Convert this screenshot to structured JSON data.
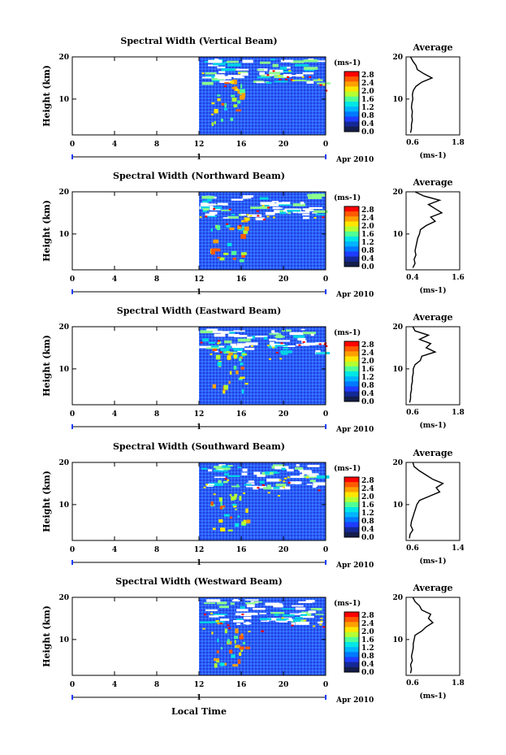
{
  "footer": {
    "xlabel": "Local Time"
  },
  "colorbar": {
    "unit_label": "(ms-1)",
    "tick_labels": [
      "2.8",
      "2.4",
      "2.0",
      "1.6",
      "1.2",
      "0.8",
      "0.4",
      "0.0"
    ],
    "colors": [
      "#ff0000",
      "#ff5a00",
      "#ffa000",
      "#ffe600",
      "#b4ff32",
      "#50ff96",
      "#00e6e6",
      "#00b4ff",
      "#0078ff",
      "#1e3cff",
      "#142896",
      "#141e4b"
    ]
  },
  "date_label": "Apr 2010",
  "day_label": "1",
  "x_ticks": [
    "0",
    "4",
    "8",
    "12",
    "16",
    "20",
    "0"
  ],
  "height_ticks": [
    "20",
    "10"
  ],
  "average_title": "Average",
  "average_unit": "(ms-1)",
  "chart_data": [
    {
      "type": "heatmap",
      "title": "Spectral Width (Vertical Beam)",
      "ylabel": "Height (km)",
      "xlabel": "Local Time",
      "x_ticks": [
        "0",
        "4",
        "8",
        "12",
        "16",
        "20",
        "0"
      ],
      "y_ticks": [
        20,
        10
      ],
      "ylim": [
        1.5,
        20
      ],
      "data_start_hour": 12,
      "colorbar_range": [
        0.0,
        2.8
      ],
      "colorbar_unit": "(ms-1)",
      "average_profile": {
        "title": "Average",
        "xlabel": "(ms-1)",
        "x_ticks": [
          "0.6",
          "1.8"
        ],
        "xlim": [
          0.6,
          1.8
        ],
        "height": [
          2,
          3,
          4,
          5,
          6,
          7,
          8,
          9,
          10,
          11,
          12,
          13,
          14,
          15,
          16,
          17,
          18,
          19,
          20
        ],
        "width": [
          0.7,
          0.72,
          0.72,
          0.74,
          0.73,
          0.74,
          0.72,
          0.73,
          0.75,
          0.74,
          0.76,
          0.82,
          0.95,
          1.18,
          1.0,
          0.85,
          0.82,
          0.75,
          0.7
        ]
      }
    },
    {
      "type": "heatmap",
      "title": "Spectral Width (Northward Beam)",
      "ylabel": "Height (km)",
      "xlabel": "Local Time",
      "x_ticks": [
        "0",
        "4",
        "8",
        "12",
        "16",
        "20",
        "0"
      ],
      "y_ticks": [
        20,
        10
      ],
      "ylim": [
        1.5,
        20
      ],
      "data_start_hour": 12,
      "colorbar_range": [
        0.0,
        2.8
      ],
      "colorbar_unit": "(ms-1)",
      "average_profile": {
        "title": "Average",
        "xlabel": "(ms-1)",
        "x_ticks": [
          "0.4",
          "1.6"
        ],
        "xlim": [
          0.4,
          1.6
        ],
        "height": [
          2,
          3,
          4,
          5,
          6,
          7,
          8,
          9,
          10,
          11,
          12,
          13,
          14,
          15,
          16,
          17,
          18,
          19,
          20
        ],
        "width": [
          0.55,
          0.6,
          0.58,
          0.62,
          0.6,
          0.62,
          0.64,
          0.66,
          0.7,
          0.72,
          0.85,
          1.05,
          0.95,
          1.2,
          1.05,
          0.9,
          1.15,
          0.8,
          0.6
        ]
      }
    },
    {
      "type": "heatmap",
      "title": "Spectral Width (Eastward Beam)",
      "ylabel": "Height (km)",
      "xlabel": "Local Time",
      "x_ticks": [
        "0",
        "4",
        "8",
        "12",
        "16",
        "20",
        "0"
      ],
      "y_ticks": [
        20,
        10
      ],
      "ylim": [
        1.5,
        20
      ],
      "data_start_hour": 12,
      "colorbar_range": [
        0.0,
        2.8
      ],
      "colorbar_unit": "(ms-1)",
      "average_profile": {
        "title": "Average",
        "xlabel": "(ms-1)",
        "x_ticks": [
          "0.6",
          "1.8"
        ],
        "xlim": [
          0.6,
          1.8
        ],
        "height": [
          2,
          3,
          4,
          5,
          6,
          7,
          8,
          9,
          10,
          11,
          12,
          13,
          14,
          15,
          16,
          17,
          18,
          19,
          20
        ],
        "width": [
          0.68,
          0.7,
          0.7,
          0.72,
          0.72,
          0.74,
          0.74,
          0.76,
          0.76,
          0.8,
          0.92,
          0.95,
          1.25,
          1.05,
          1.15,
          0.9,
          1.1,
          0.8,
          0.75
        ]
      }
    },
    {
      "type": "heatmap",
      "title": "Spectral Width (Southward Beam)",
      "ylabel": "Height (km)",
      "xlabel": "Local Time",
      "x_ticks": [
        "0",
        "4",
        "8",
        "12",
        "16",
        "20",
        "0"
      ],
      "y_ticks": [
        20,
        10
      ],
      "ylim": [
        1.5,
        20
      ],
      "data_start_hour": 12,
      "colorbar_range": [
        0.0,
        2.8
      ],
      "colorbar_unit": "(ms-1)",
      "average_profile": {
        "title": "Average",
        "xlabel": "(ms-1)",
        "x_ticks": [
          "0.6",
          "1.4"
        ],
        "xlim": [
          0.6,
          1.4
        ],
        "height": [
          2,
          3,
          4,
          5,
          6,
          7,
          8,
          9,
          10,
          11,
          12,
          13,
          14,
          15,
          16,
          17,
          18,
          19,
          20
        ],
        "width": [
          0.65,
          0.66,
          0.7,
          0.67,
          0.68,
          0.7,
          0.72,
          0.74,
          0.76,
          0.8,
          0.95,
          1.1,
          1.05,
          1.15,
          1.0,
          0.9,
          0.8,
          0.72,
          0.7
        ]
      }
    },
    {
      "type": "heatmap",
      "title": "Spectral Width (Westward Beam)",
      "ylabel": "Height (km)",
      "xlabel": "Local Time",
      "x_ticks": [
        "0",
        "4",
        "8",
        "12",
        "16",
        "20",
        "0"
      ],
      "y_ticks": [
        20,
        10
      ],
      "ylim": [
        1.5,
        20
      ],
      "data_start_hour": 12,
      "colorbar_range": [
        0.0,
        2.8
      ],
      "colorbar_unit": "(ms-1)",
      "average_profile": {
        "title": "Average",
        "xlabel": "(ms-1)",
        "x_ticks": [
          "0.6",
          "1.8"
        ],
        "xlim": [
          0.6,
          1.8
        ],
        "height": [
          2,
          3,
          4,
          5,
          6,
          7,
          8,
          9,
          10,
          11,
          12,
          13,
          14,
          15,
          16,
          17,
          18,
          19,
          20
        ],
        "width": [
          0.7,
          0.72,
          0.7,
          0.74,
          0.72,
          0.74,
          0.76,
          0.76,
          0.78,
          0.8,
          0.95,
          1.05,
          1.2,
          1.1,
          1.15,
          0.95,
          0.9,
          0.8,
          0.75
        ]
      }
    }
  ]
}
